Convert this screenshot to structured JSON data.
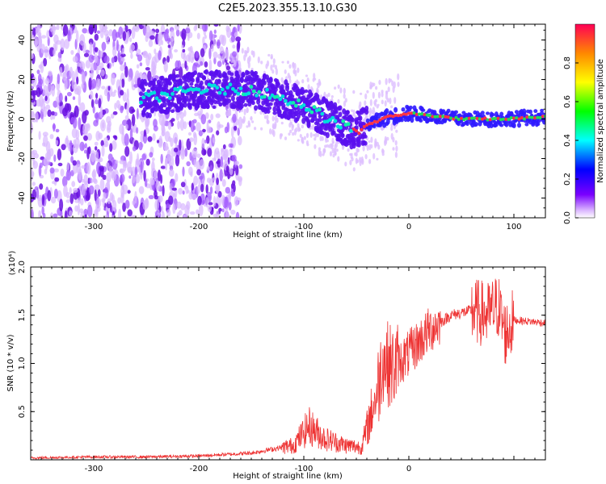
{
  "title": "C2E5.2023.355.13.10.G30",
  "chart_data": [
    {
      "type": "heatmap",
      "xlabel": "Height of straight line (km)",
      "ylabel": "Frequency (Hz)",
      "xlim": [
        -360,
        130
      ],
      "ylim": [
        -50,
        48
      ],
      "x_ticks": [
        -300,
        -200,
        -100,
        0,
        100
      ],
      "y_ticks": [
        -40,
        -20,
        0,
        20,
        40
      ],
      "colorbar": {
        "label": "Normalized spectral amplitude",
        "range": [
          0.0,
          1.0
        ],
        "ticks": [
          "0.0",
          "0.2",
          "0.4",
          "0.6",
          "0.8"
        ],
        "colormap": "rainbow"
      },
      "ridge": {
        "x": [
          -255,
          -200,
          -150,
          -100,
          -70,
          -50,
          -40,
          -20,
          0,
          50,
          90,
          130
        ],
        "y": [
          10,
          15,
          15,
          7,
          -2,
          -6,
          -3,
          1,
          3,
          0,
          0,
          1
        ]
      }
    },
    {
      "type": "line",
      "xlabel": "Height of straight line (km)",
      "ylabel": "SNR (10 * v/v)",
      "scale_label": "(x10⁴)",
      "xlim": [
        -360,
        130
      ],
      "ylim": [
        0,
        2.0
      ],
      "x_ticks": [
        -300,
        -200,
        -100,
        0
      ],
      "y_ticks": [
        "0.5",
        "1.0",
        "1.5",
        "2.0"
      ],
      "line_color": "#ee3333",
      "series": [
        {
          "x": [
            -360,
            -300,
            -250,
            -200,
            -150,
            -110,
            -95,
            -80,
            -60,
            -45,
            -30,
            -25,
            -15,
            0,
            20,
            40,
            60,
            75,
            85,
            92,
            100,
            130
          ],
          "y": [
            0.02,
            0.03,
            0.03,
            0.04,
            0.07,
            0.15,
            0.35,
            0.22,
            0.15,
            0.13,
            0.7,
            1.05,
            0.95,
            1.1,
            1.35,
            1.5,
            1.55,
            1.5,
            1.6,
            1.3,
            1.45,
            1.42
          ]
        }
      ]
    }
  ]
}
